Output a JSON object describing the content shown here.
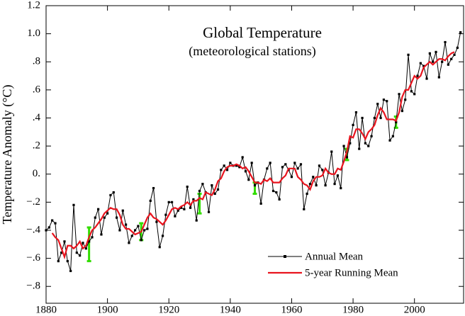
{
  "chart_data": {
    "type": "line",
    "title": "Global Temperature",
    "subtitle": "(meteorological stations)",
    "y_label": "Temperature Anomaly (°C)",
    "xlim": [
      1880,
      2016
    ],
    "ylim": [
      -0.92,
      1.2
    ],
    "xticks": [
      1880,
      1900,
      1920,
      1940,
      1960,
      1980,
      2000
    ],
    "yticks": [
      1.2,
      {
        "value": 1.0,
        "label": "1.0"
      },
      {
        "value": 0.8,
        "label": ".8"
      },
      {
        "value": 0.6,
        "label": ".6"
      },
      {
        "value": 0.4,
        "label": ".4"
      },
      {
        "value": 0.2,
        "label": ".2"
      },
      {
        "value": 0,
        "label": "0."
      },
      {
        "value": -0.2,
        "label": "−.2"
      },
      {
        "value": -0.4,
        "label": "−.4"
      },
      {
        "value": -0.6,
        "label": "−.6"
      },
      {
        "value": -0.8,
        "label": "−.8"
      }
    ],
    "grid": false,
    "legend": "lower right",
    "x": [
      1880,
      1881,
      1882,
      1883,
      1884,
      1885,
      1886,
      1887,
      1888,
      1889,
      1890,
      1891,
      1892,
      1893,
      1894,
      1895,
      1896,
      1897,
      1898,
      1899,
      1900,
      1901,
      1902,
      1903,
      1904,
      1905,
      1906,
      1907,
      1908,
      1909,
      1910,
      1911,
      1912,
      1913,
      1914,
      1915,
      1916,
      1917,
      1918,
      1919,
      1920,
      1921,
      1922,
      1923,
      1924,
      1925,
      1926,
      1927,
      1928,
      1929,
      1930,
      1931,
      1932,
      1933,
      1934,
      1935,
      1936,
      1937,
      1938,
      1939,
      1940,
      1941,
      1942,
      1943,
      1944,
      1945,
      1946,
      1947,
      1948,
      1949,
      1950,
      1951,
      1952,
      1953,
      1954,
      1955,
      1956,
      1957,
      1958,
      1959,
      1960,
      1961,
      1962,
      1963,
      1964,
      1965,
      1966,
      1967,
      1968,
      1969,
      1970,
      1971,
      1972,
      1973,
      1974,
      1975,
      1976,
      1977,
      1978,
      1979,
      1980,
      1981,
      1982,
      1983,
      1984,
      1985,
      1986,
      1987,
      1988,
      1989,
      1990,
      1991,
      1992,
      1993,
      1994,
      1995,
      1996,
      1997,
      1998,
      1999,
      2000,
      2001,
      2002,
      2003,
      2004,
      2005,
      2006,
      2007,
      2008,
      2009,
      2010,
      2011,
      2012,
      2013,
      2014,
      2015
    ],
    "series": [
      {
        "name": "Annual Mean",
        "color": "#000000",
        "markers": true,
        "values": [
          -0.4,
          -0.38,
          -0.33,
          -0.35,
          -0.62,
          -0.56,
          -0.48,
          -0.62,
          -0.69,
          -0.22,
          -0.56,
          -0.58,
          -0.49,
          -0.53,
          -0.48,
          -0.45,
          -0.31,
          -0.25,
          -0.43,
          -0.31,
          -0.28,
          -0.15,
          -0.13,
          -0.31,
          -0.4,
          -0.26,
          -0.36,
          -0.49,
          -0.44,
          -0.4,
          -0.37,
          -0.47,
          -0.4,
          -0.39,
          -0.19,
          -0.1,
          -0.34,
          -0.52,
          -0.44,
          -0.29,
          -0.2,
          -0.2,
          -0.3,
          -0.26,
          -0.24,
          -0.25,
          -0.09,
          -0.24,
          -0.18,
          -0.33,
          -0.12,
          -0.07,
          -0.13,
          -0.27,
          -0.08,
          -0.14,
          -0.11,
          0.03,
          0.06,
          0.03,
          0.08,
          0.06,
          0.06,
          0.05,
          0.12,
          0.02,
          -0.04,
          0.08,
          -0.08,
          -0.06,
          -0.21,
          -0.04,
          0.04,
          0.08,
          -0.12,
          -0.13,
          -0.18,
          0.05,
          0.07,
          0.03,
          -0.02,
          0.08,
          0.04,
          0.07,
          -0.25,
          -0.14,
          -0.07,
          -0.02,
          -0.08,
          0.06,
          0.03,
          -0.08,
          0.01,
          0.16,
          -0.07,
          -0.01,
          -0.1,
          0.2,
          0.12,
          0.22,
          0.35,
          0.44,
          0.18,
          0.4,
          0.22,
          0.2,
          0.27,
          0.4,
          0.5,
          0.4,
          0.53,
          0.52,
          0.24,
          0.27,
          0.37,
          0.57,
          0.45,
          0.53,
          0.85,
          0.59,
          0.57,
          0.7,
          0.79,
          0.77,
          0.68,
          0.86,
          0.8,
          0.87,
          0.69,
          0.8,
          0.94,
          0.78,
          0.82,
          0.85,
          0.9,
          1.01
        ]
      },
      {
        "name": "5-year Running Mean",
        "color": "#e8141e",
        "markers": false,
        "values": [
          null,
          null,
          -0.42,
          -0.45,
          -0.47,
          -0.53,
          -0.59,
          -0.51,
          -0.51,
          -0.53,
          -0.51,
          -0.48,
          -0.53,
          -0.51,
          -0.45,
          -0.4,
          -0.38,
          -0.35,
          -0.32,
          -0.28,
          -0.26,
          -0.24,
          -0.25,
          -0.25,
          -0.29,
          -0.36,
          -0.39,
          -0.39,
          -0.41,
          -0.43,
          -0.42,
          -0.41,
          -0.36,
          -0.31,
          -0.28,
          -0.31,
          -0.32,
          -0.34,
          -0.36,
          -0.33,
          -0.29,
          -0.25,
          -0.24,
          -0.25,
          -0.23,
          -0.22,
          -0.2,
          -0.22,
          -0.19,
          -0.19,
          -0.17,
          -0.18,
          -0.13,
          -0.14,
          -0.15,
          -0.11,
          -0.05,
          -0.03,
          0.02,
          0.05,
          0.06,
          0.06,
          0.07,
          0.06,
          0.04,
          0.05,
          0.02,
          -0.02,
          -0.06,
          -0.06,
          -0.07,
          -0.04,
          -0.05,
          -0.03,
          -0.06,
          -0.06,
          -0.06,
          -0.03,
          -0.01,
          0.04,
          0.04,
          0.04,
          -0.02,
          -0.04,
          -0.07,
          -0.08,
          -0.11,
          -0.05,
          -0.02,
          -0.02,
          -0.01,
          0.04,
          0.01,
          0.0,
          0.0,
          0.04,
          0.03,
          0.09,
          0.16,
          0.27,
          0.26,
          0.32,
          0.32,
          0.29,
          0.25,
          0.3,
          0.32,
          0.35,
          0.42,
          0.47,
          0.44,
          0.39,
          0.39,
          0.39,
          0.38,
          0.44,
          0.55,
          0.6,
          0.6,
          0.65,
          0.7,
          0.68,
          0.7,
          0.76,
          0.78,
          0.8,
          0.78,
          0.8,
          0.82,
          0.82,
          0.81,
          0.84,
          0.86,
          0.87,
          null,
          null
        ]
      }
    ],
    "error_bars": {
      "color": "#33dd00",
      "x": [
        1894,
        1911,
        1930,
        1948,
        1978,
        1994
      ],
      "values": [
        -0.5,
        -0.41,
        -0.21,
        -0.1,
        0.14,
        0.37
      ],
      "errors": [
        0.12,
        0.06,
        0.07,
        0.04,
        0.04,
        0.04
      ]
    }
  }
}
